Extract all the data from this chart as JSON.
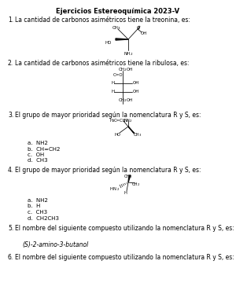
{
  "title": "Ejercicios Estereoquímica 2023-V",
  "background": "#ffffff",
  "q1_num": "1.",
  "q1_text": "La cantidad de carbonos asimétricos tiene la treonina, es:",
  "q2_num": "2.",
  "q2_text": "La cantidad de carbonos asimétricos tiene la ribulosa, es:",
  "q3_num": "3.",
  "q3_text": "El grupo de mayor prioridad según la nomenclatura R y S, es:",
  "q3_opts": [
    "a.  NH2",
    "b.  CH=CH2",
    "c.  OH",
    "d.  CH3"
  ],
  "q4_num": "4.",
  "q4_text": "El grupo de mayor prioridad según la nomenclatura R y S, es:",
  "q4_opts": [
    "a.  NH2",
    "b.  H",
    "c.  CH3",
    "d.  CH2CH3"
  ],
  "q5_num": "5.",
  "q5_text": "El nombre del siguiente compuesto utilizando la nomenclatura R y S, es:",
  "q5_answer": "(S)-2-amino-3-butanol",
  "q6_num": "6.",
  "q6_text": "El nombre del siguiente compuesto utilizando la nomenclatura R y S, es:"
}
